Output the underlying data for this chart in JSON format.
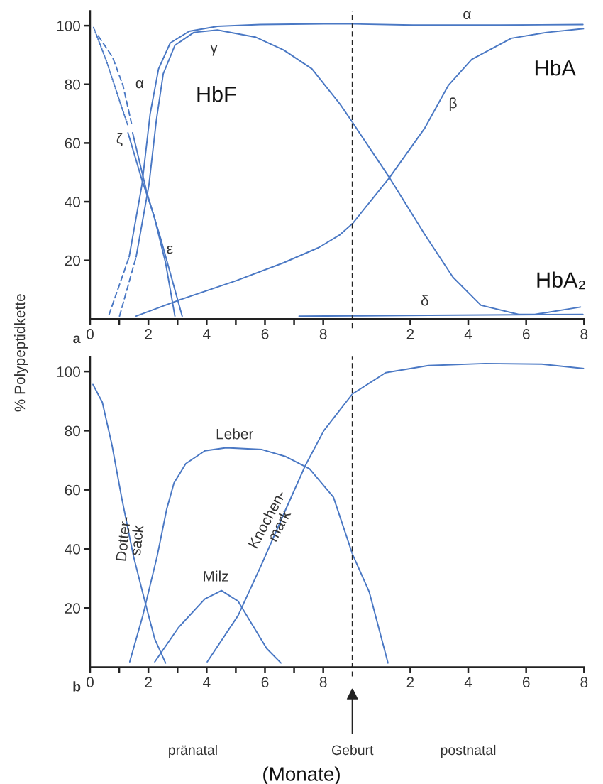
{
  "chart_data": [
    {
      "type": "line",
      "ylabel": "% Polypeptidkette",
      "xlim": [
        0,
        9
      ],
      "ylim": [
        0,
        105
      ],
      "xticks": [
        0,
        {
          "value": 1,
          "label": null
        },
        2,
        {
          "value": 3,
          "label": null
        },
        4,
        {
          "value": 5,
          "label": null
        },
        6,
        {
          "value": 7,
          "label": null
        },
        8
      ],
      "yticks": [
        20,
        40,
        60,
        80,
        100
      ],
      "marker": "none",
      "ref_lines": [
        {
          "axis": "x",
          "value": 9,
          "color": "#222222",
          "line_style": "dashed"
        }
      ],
      "series": [
        {
          "color": "#4a78c4",
          "line_style": "dashed",
          "x": [
            0.65,
            1.34
          ],
          "values": [
            1.5,
            21.2
          ]
        },
        {
          "color": "#4a78c4",
          "line_style": "solid",
          "x": [
            1.34,
            1.78,
            2.06,
            2.35,
            2.75,
            3.4,
            4.37,
            5.83,
            8.58,
            9.0
          ],
          "values": [
            21.2,
            45.8,
            69.9,
            85.3,
            94.1,
            98.1,
            99.8,
            100.4,
            100.7,
            100.6
          ]
        },
        {
          "color": "#4a78c4",
          "line_style": "dashed",
          "x": [
            1.01,
            1.58
          ],
          "values": [
            1.0,
            21.2
          ]
        },
        {
          "color": "#4a78c4",
          "line_style": "solid",
          "x": [
            1.58,
            2.02,
            2.27,
            2.51,
            2.91,
            3.56,
            4.37,
            5.67,
            6.64,
            7.61,
            8.58,
            9.0
          ],
          "values": [
            21.2,
            45.8,
            67.5,
            83.6,
            93.3,
            97.7,
            98.5,
            96.1,
            91.7,
            85.3,
            73.2,
            67.1
          ]
        },
        {
          "color": "#4a78c4",
          "line_style": "solid",
          "x": [
            1.58,
            3.0,
            5.02,
            6.64,
            7.85,
            8.58,
            9.0
          ],
          "values": [
            1.0,
            6.3,
            13.1,
            19.2,
            24.4,
            28.8,
            32.5
          ]
        },
        {
          "color": "#4a78c4",
          "line_style": "solid",
          "x": [
            7.17,
            9.0
          ],
          "values": [
            1.0,
            1.1
          ]
        },
        {
          "color": "#4a78c4",
          "line_style": "dotted",
          "x": [
            0.12,
            0.57,
            0.97,
            1.3
          ],
          "values": [
            99.4,
            87.7,
            75.6,
            65.9
          ]
        },
        {
          "color": "#4a78c4",
          "line_style": "solid",
          "x": [
            1.3,
            1.78,
            2.19,
            2.59,
            2.91
          ],
          "values": [
            63.5,
            47.4,
            35.3,
            19.2,
            1.0
          ]
        },
        {
          "color": "#4a78c4",
          "line_style": "dashed",
          "x": [
            0.28,
            0.77,
            1.13,
            1.42
          ],
          "values": [
            96.5,
            89.3,
            79.6,
            66.7
          ]
        },
        {
          "color": "#4a78c4",
          "line_style": "solid",
          "x": [
            1.46,
            1.94,
            2.43,
            3.16
          ],
          "values": [
            63.5,
            43.4,
            27.2,
            1.0
          ]
        }
      ],
      "annotations": [
        "α",
        "γ",
        "HbF",
        "ζ",
        "ε",
        "a"
      ]
    },
    {
      "type": "line",
      "xlim": [
        0,
        8
      ],
      "ylim": [
        0,
        105
      ],
      "tick_labels": "x",
      "xticks": [
        2,
        4,
        6,
        8
      ],
      "marker": "none",
      "series": [
        {
          "color": "#4a78c4",
          "line_style": "solid",
          "x": [
            0,
            2.09,
            5.09,
            7.96
          ],
          "values": [
            100.6,
            100.2,
            100.2,
            100.4
          ]
        },
        {
          "color": "#4a78c4",
          "line_style": "solid",
          "x": [
            0,
            1.28,
            2.5,
            3.47,
            4.44,
            5.74,
            6.3,
            7.88
          ],
          "values": [
            67.1,
            48.2,
            28.8,
            14.3,
            4.7,
            1.6,
            1.6,
            4.1
          ]
        },
        {
          "color": "#4a78c4",
          "line_style": "solid",
          "x": [
            0,
            1.28,
            2.5,
            3.31,
            4.12,
            5.49,
            6.71,
            8.0
          ],
          "values": [
            32.5,
            48.2,
            65.1,
            79.6,
            88.5,
            95.7,
            97.7,
            99.0
          ]
        },
        {
          "color": "#4a78c4",
          "line_style": "solid",
          "x": [
            0,
            2.66,
            7.96
          ],
          "values": [
            1.1,
            1.3,
            1.6
          ]
        }
      ],
      "annotations": [
        "α",
        "β",
        "HbA",
        "HbA₂",
        "δ"
      ]
    },
    {
      "type": "line",
      "xlabel": "(Monate)",
      "xlim": [
        0,
        9
      ],
      "ylim": [
        0,
        105
      ],
      "xticks": [
        0,
        {
          "value": 1,
          "label": null
        },
        2,
        {
          "value": 3,
          "label": null
        },
        4,
        {
          "value": 5,
          "label": null
        },
        6,
        {
          "value": 7,
          "label": null
        },
        8
      ],
      "yticks": [
        20,
        40,
        60,
        80,
        100
      ],
      "marker": "none",
      "ref_lines": [
        {
          "axis": "x",
          "value": 9,
          "color": "#222222",
          "line_style": "dashed"
        }
      ],
      "series": [
        {
          "color": "#4a78c4",
          "line_style": "solid",
          "x": [
            0.1,
            0.42,
            0.75,
            1.08,
            1.49,
            1.9,
            2.22,
            2.59
          ],
          "values": [
            95.6,
            89.6,
            75.2,
            57.5,
            37.5,
            21.5,
            9.5,
            1.4
          ]
        },
        {
          "color": "#4a78c4",
          "line_style": "solid",
          "x": [
            1.36,
            1.81,
            2.3,
            2.63,
            2.88,
            3.28,
            3.94,
            4.67,
            5.9,
            6.72,
            7.53,
            8.35,
            9.0
          ],
          "values": [
            1.8,
            17.5,
            37.5,
            53.5,
            62.3,
            68.8,
            73.2,
            74.2,
            73.6,
            71.2,
            67.1,
            57.5,
            38.3
          ]
        },
        {
          "color": "#4a78c4",
          "line_style": "solid",
          "x": [
            2.22,
            3.04,
            3.94,
            4.51,
            5.08,
            5.57,
            6.06,
            6.55
          ],
          "values": [
            1.8,
            13.5,
            23.1,
            25.9,
            22.3,
            14.3,
            6.3,
            1.4
          ]
        },
        {
          "color": "#4a78c4",
          "line_style": "solid",
          "x": [
            4.02,
            5.08,
            5.9,
            6.72,
            7.37,
            8.02,
            9.0
          ],
          "values": [
            1.8,
            17.5,
            35.1,
            53.5,
            67.9,
            80.0,
            92.4
          ]
        }
      ],
      "annotations": [
        "Leber",
        "Milz",
        "Dotter-\nsack",
        "Knochen-\nmark",
        "b",
        "pränatal"
      ]
    },
    {
      "type": "line",
      "xlim": [
        0,
        8
      ],
      "ylim": [
        0,
        105
      ],
      "tick_labels": "x",
      "xticks": [
        2,
        4,
        6,
        8
      ],
      "marker": "none",
      "series": [
        {
          "color": "#4a78c4",
          "line_style": "solid",
          "x": [
            0,
            0.58,
            1.23
          ],
          "values": [
            38.3,
            25.5,
            1.4
          ]
        },
        {
          "color": "#4a78c4",
          "line_style": "solid",
          "x": [
            0,
            1.15,
            2.62,
            4.58,
            6.54,
            8.0
          ],
          "values": [
            92.4,
            99.6,
            102.0,
            102.7,
            102.5,
            101.0
          ]
        }
      ],
      "annotations": [
        "Geburt",
        "postnatal"
      ]
    }
  ]
}
